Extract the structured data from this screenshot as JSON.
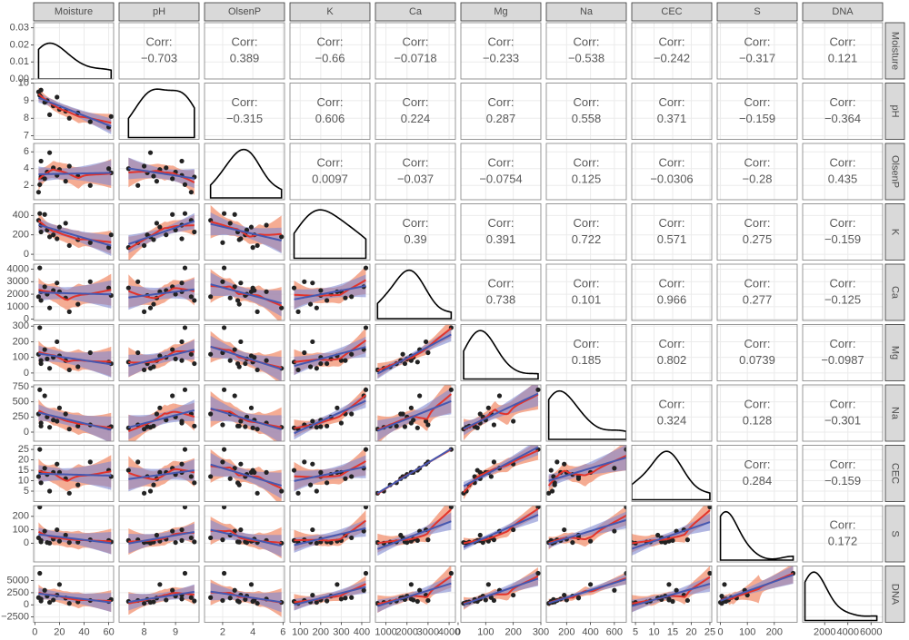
{
  "chart_data": {
    "type": "pairs",
    "corr_title": "Corr:",
    "density_ylim": [
      0,
      0.033
    ],
    "density_yticks": [
      {
        "value": 0,
        "label": "0.00"
      },
      {
        "value": 0.01,
        "label": "0.01"
      },
      {
        "value": 0.02,
        "label": "0.02"
      },
      {
        "value": 0.03,
        "label": "0.03"
      }
    ],
    "point_color": "#222222",
    "smooth_color": "#e3342b",
    "smooth_fill": "#f2906f",
    "lm_color": "#4658b0",
    "lm_fill": "#8088d0",
    "grid": true,
    "variables": [
      {
        "name": "Moisture",
        "values": [
          3,
          4,
          5,
          5,
          8,
          10,
          12,
          15,
          18,
          20,
          25,
          28,
          35,
          45,
          60,
          62
        ],
        "xlim": [
          -1,
          64
        ],
        "xticks": [
          0,
          20,
          40,
          60
        ]
      },
      {
        "name": "pH",
        "values": [
          9.5,
          9.3,
          9.2,
          9.6,
          8.9,
          9.0,
          8.2,
          8.7,
          9.2,
          8.5,
          8.4,
          8.0,
          8.3,
          7.8,
          7.5,
          8.1
        ],
        "xlim": [
          7.2,
          9.75
        ],
        "xticks": [
          8,
          9
        ],
        "ylim": [
          6.8,
          10
        ],
        "yticks": [
          7,
          8,
          9,
          10
        ]
      },
      {
        "name": "OlsenP",
        "values": [
          1.2,
          2.1,
          4.9,
          3.0,
          2.8,
          3.6,
          5.9,
          4.1,
          3.2,
          3.9,
          2.5,
          4.3,
          3.1,
          2.0,
          4.0,
          3.5
        ],
        "xlim": [
          0.8,
          6.1
        ],
        "xticks": [
          2,
          4,
          6
        ],
        "ylim": [
          0.3,
          7
        ],
        "yticks": [
          2,
          4,
          6
        ]
      },
      {
        "name": "K",
        "values": [
          350,
          420,
          300,
          230,
          410,
          250,
          180,
          200,
          160,
          280,
          320,
          90,
          150,
          120,
          70,
          200
        ],
        "xlim": [
          50,
          440
        ],
        "xticks": [
          100,
          200,
          300,
          400
        ],
        "ylim": [
          -60,
          520
        ],
        "yticks": [
          0,
          200,
          400
        ]
      },
      {
        "name": "Ca",
        "values": [
          1800,
          4100,
          2200,
          1500,
          2600,
          2000,
          900,
          2300,
          2900,
          2200,
          1700,
          600,
          1200,
          3000,
          2500,
          1900
        ],
        "xlim": [
          500,
          4300
        ],
        "xticks": [
          1000,
          2000,
          3000,
          4000
        ],
        "ylim": [
          -100,
          4400
        ],
        "yticks": [
          0,
          1000,
          2000,
          3000,
          4000
        ]
      },
      {
        "name": "Mg",
        "values": [
          120,
          290,
          80,
          60,
          150,
          90,
          30,
          100,
          200,
          110,
          80,
          20,
          40,
          130,
          70,
          60
        ],
        "xlim": [
          10,
          300
        ],
        "xticks": [
          0,
          100,
          200,
          300
        ],
        "ylim": [
          -50,
          310
        ],
        "yticks": [
          0,
          100,
          200,
          300
        ]
      },
      {
        "name": "Na",
        "values": [
          300,
          700,
          150,
          100,
          600,
          250,
          80,
          200,
          180,
          400,
          300,
          50,
          100,
          120,
          70,
          90
        ],
        "xlim": [
          30,
          700
        ],
        "xticks": [
          200,
          400,
          600
        ],
        "ylim": [
          -150,
          780
        ],
        "yticks": [
          0,
          250,
          500,
          750
        ]
      },
      {
        "name": "CEC",
        "values": [
          12,
          25,
          14,
          9,
          16,
          13,
          5,
          14,
          18,
          14,
          11,
          4,
          8,
          19,
          15,
          12
        ],
        "xlim": [
          4,
          25.5
        ],
        "xticks": [
          5,
          10,
          15,
          20,
          25
        ],
        "ylim": [
          0,
          27
        ],
        "yticks": [
          5,
          10,
          15,
          20,
          25
        ]
      },
      {
        "name": "S",
        "values": [
          40,
          270,
          20,
          10,
          90,
          5,
          0,
          30,
          100,
          15,
          60,
          5,
          8,
          25,
          20,
          10
        ],
        "xlim": [
          -12,
          285
        ],
        "xticks": [
          0,
          100,
          200
        ],
        "ylim": [
          -140,
          280
        ],
        "yticks": [
          0,
          100,
          200
        ]
      },
      {
        "name": "DNA",
        "values": [
          1500,
          6500,
          1200,
          800,
          3000,
          1800,
          500,
          1000,
          2000,
          4200,
          1400,
          300,
          600,
          900,
          700,
          1100
        ],
        "xlim": [
          100,
          7000
        ],
        "xticks": [
          2000,
          4000,
          6000
        ],
        "ylim": [
          -3600,
          8000
        ],
        "yticks": [
          {
            "value": -2500,
            "label": "−2500"
          },
          0,
          2500,
          5000
        ]
      }
    ],
    "corr_values": [
      [
        -0.703,
        0.389,
        -0.66,
        -0.0718,
        -0.233,
        -0.538,
        -0.242,
        -0.317,
        0.121
      ],
      [
        -0.315,
        0.606,
        0.224,
        0.287,
        0.558,
        0.371,
        -0.159,
        -0.364
      ],
      [
        0.0097,
        -0.037,
        -0.0754,
        0.125,
        -0.0306,
        -0.28,
        0.435
      ],
      [
        0.39,
        0.391,
        0.722,
        0.571,
        0.275,
        -0.159
      ],
      [
        0.738,
        0.101,
        0.966,
        0.277,
        -0.125
      ],
      [
        0.185,
        0.802,
        0.0739,
        -0.0987
      ],
      [
        0.324,
        0.128,
        -0.301
      ],
      [
        0.284,
        -0.159
      ],
      [
        0.172
      ]
    ],
    "corr_labels": [
      [
        "−0.703",
        "0.389",
        "−0.66",
        "−0.0718",
        "−0.233",
        "−0.538",
        "−0.242",
        "−0.317",
        "0.121"
      ],
      [
        "−0.315",
        "0.606",
        "0.224",
        "0.287",
        "0.558",
        "0.371",
        "−0.159",
        "−0.364"
      ],
      [
        "0.0097",
        "−0.037",
        "−0.0754",
        "0.125",
        "−0.0306",
        "−0.28",
        "0.435"
      ],
      [
        "0.39",
        "0.391",
        "0.722",
        "0.571",
        "0.275",
        "−0.159"
      ],
      [
        "0.738",
        "0.101",
        "0.966",
        "0.277",
        "−0.125"
      ],
      [
        "0.185",
        "0.802",
        "0.0739",
        "−0.0987"
      ],
      [
        "0.324",
        "0.128",
        "−0.301"
      ],
      [
        "0.284",
        "−0.159"
      ],
      [
        "0.172"
      ]
    ]
  }
}
